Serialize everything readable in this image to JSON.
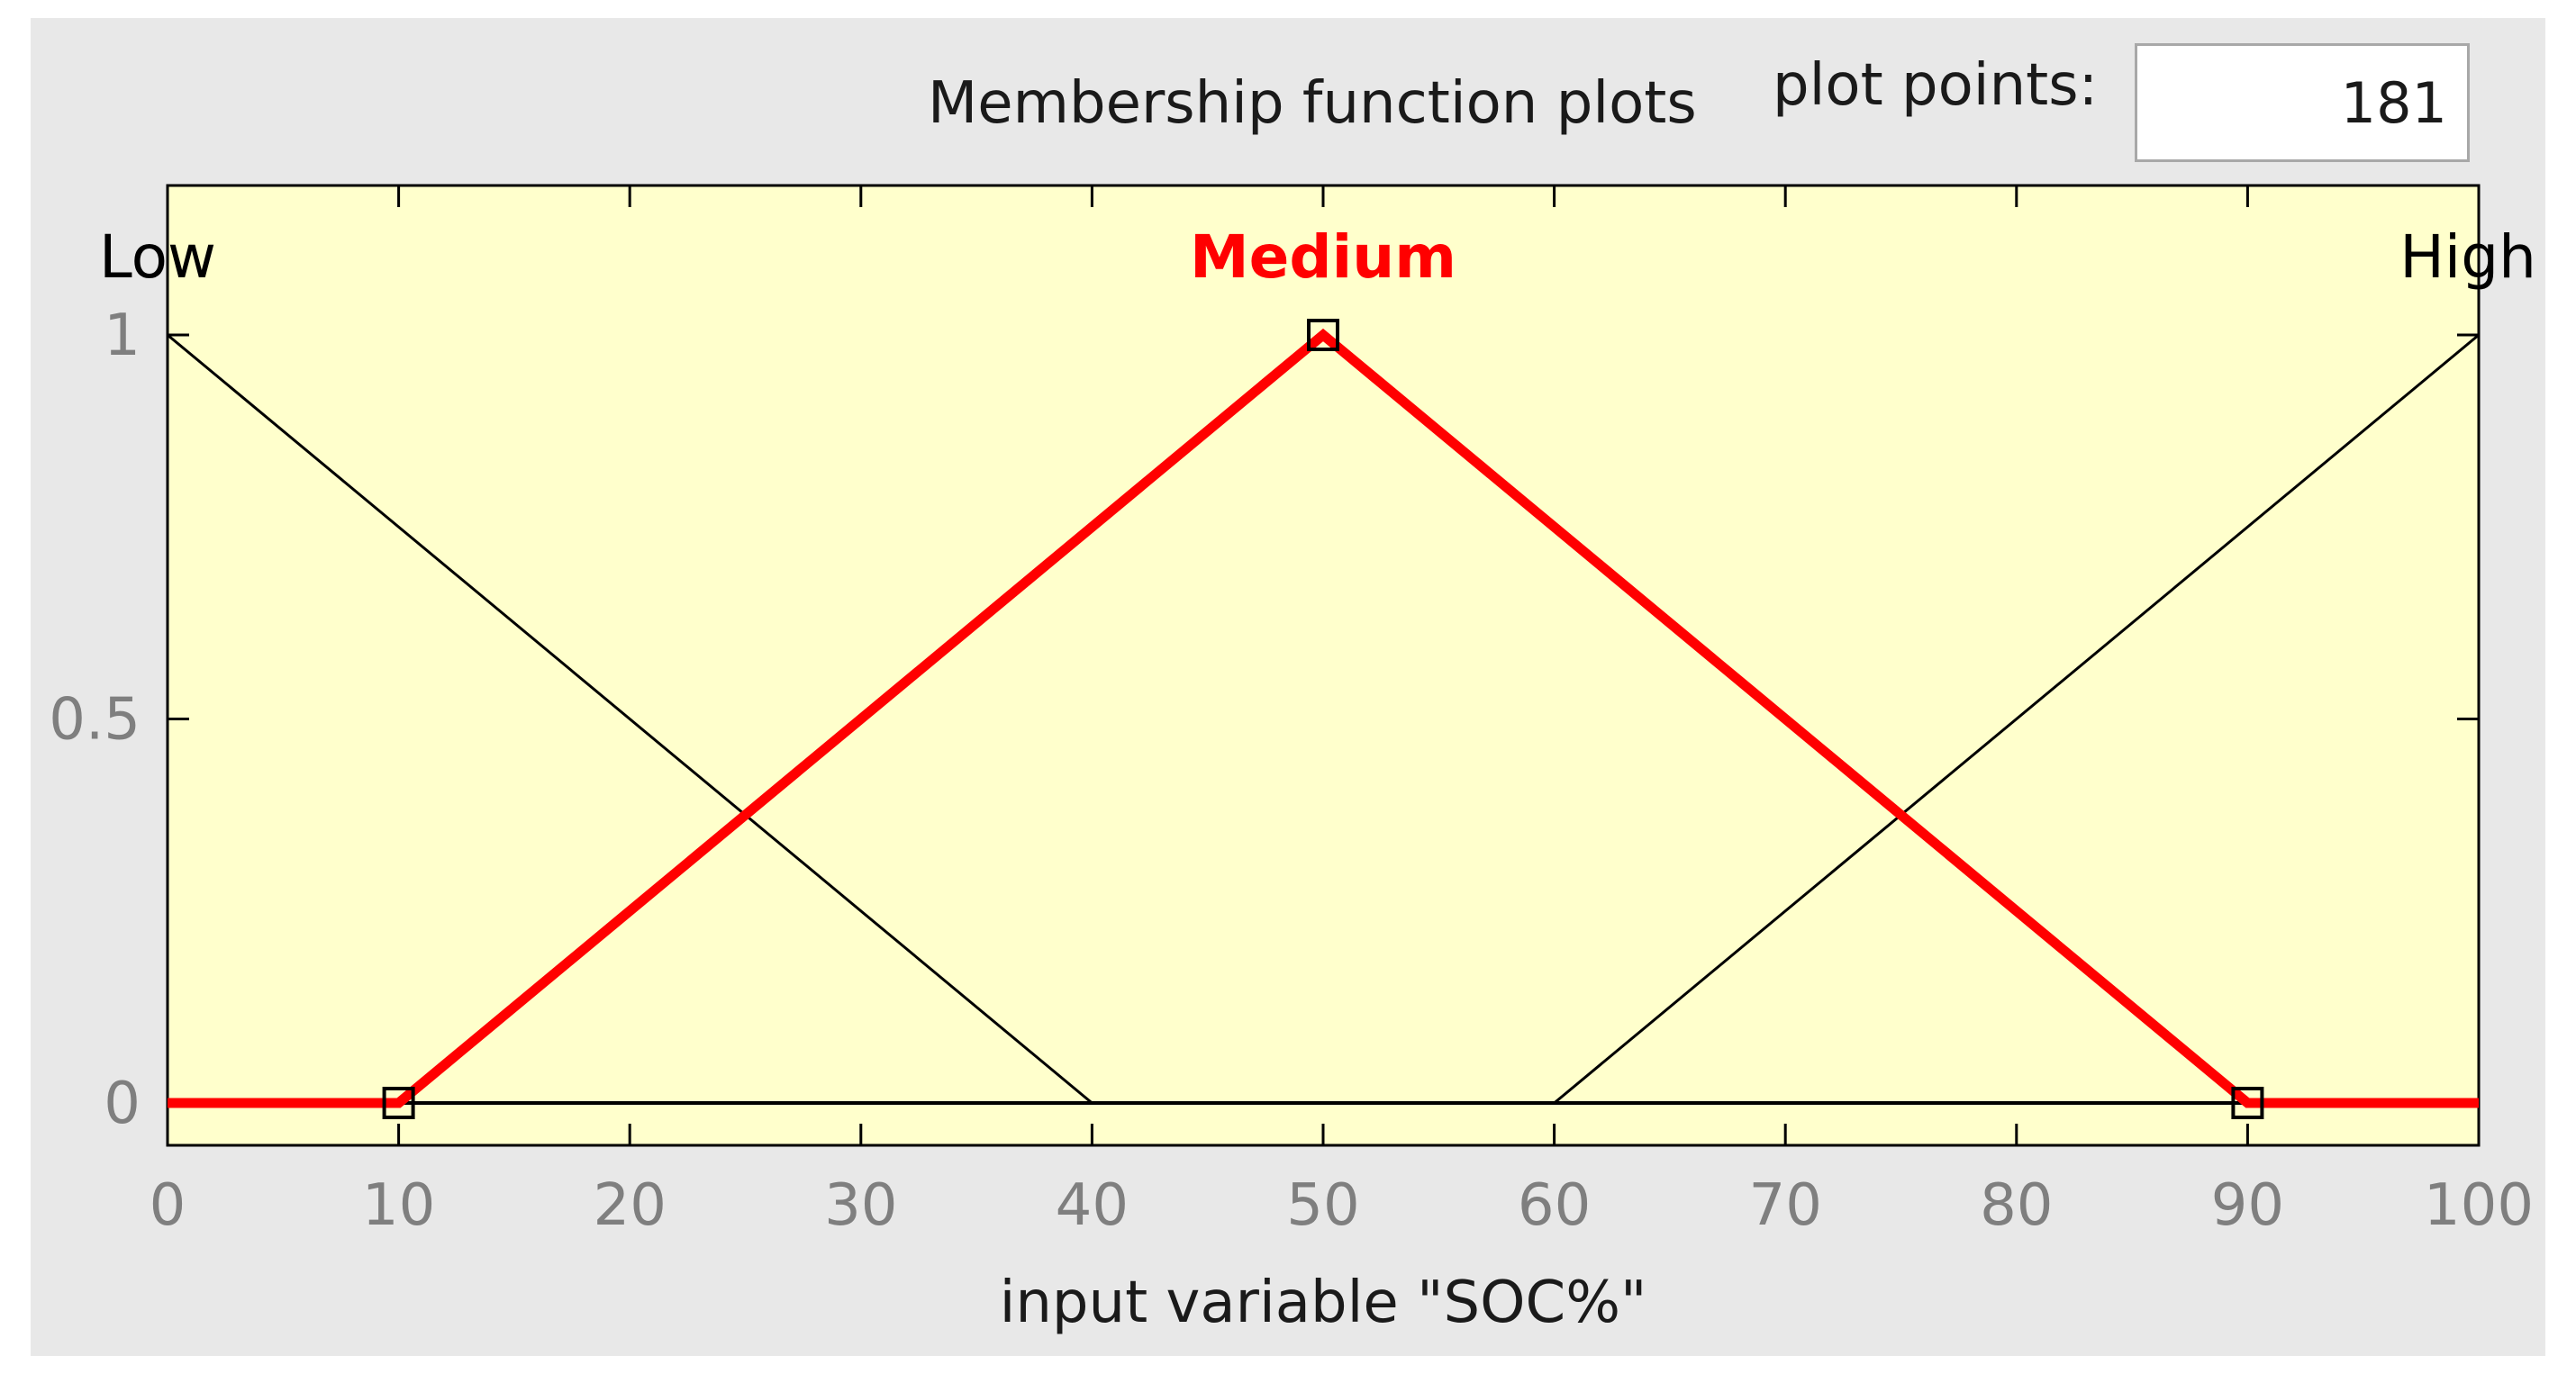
{
  "header": {
    "title": "Membership function plots",
    "plot_points_label": "plot points:",
    "plot_points_value": "181"
  },
  "colors": {
    "panel_bg": "#e8e8e8",
    "plot_bg": "#ffffcc",
    "selected": "#ff0000",
    "unselected": "#000000",
    "tick_label": "#7f7f7f"
  },
  "chart_data": {
    "type": "line",
    "xlabel": "input variable \"SOC%\"",
    "ylabel": "",
    "xlim": [
      0,
      100
    ],
    "ylim": [
      0,
      1
    ],
    "x_ticks": [
      0,
      10,
      20,
      30,
      40,
      50,
      60,
      70,
      80,
      90,
      100
    ],
    "y_ticks": [
      0,
      0.5,
      1
    ],
    "selected_series": "Medium",
    "series": [
      {
        "name": "Low",
        "shape": "triangle",
        "x": [
          0,
          0,
          40
        ],
        "y": [
          1,
          1,
          0
        ]
      },
      {
        "name": "Medium",
        "shape": "triangle",
        "x": [
          10,
          50,
          90
        ],
        "y": [
          0,
          1,
          0
        ]
      },
      {
        "name": "High",
        "shape": "triangle",
        "x": [
          60,
          100,
          100
        ],
        "y": [
          0,
          1,
          1
        ]
      }
    ]
  }
}
